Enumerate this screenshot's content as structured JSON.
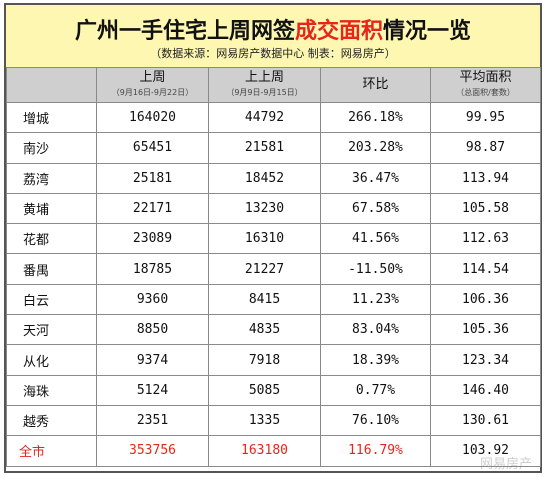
{
  "title": {
    "part1": "广州一手住宅上周网签",
    "highlight": "成交面积",
    "part2": "情况一览"
  },
  "subtitle": "（数据来源：网易房产数据中心 制表：网易房产）",
  "columns": [
    {
      "label": "",
      "sub": ""
    },
    {
      "label": "上周",
      "sub": "（9月16日-9月22日）"
    },
    {
      "label": "上上周",
      "sub": "（9月9日-9月15日）"
    },
    {
      "label": "环比",
      "sub": ""
    },
    {
      "label": "平均面积",
      "sub": "（总面积/套数）"
    }
  ],
  "rows": [
    {
      "district": "增城",
      "last_week": "164020",
      "prev_week": "44792",
      "change": "266.18%",
      "avg_area": "99.95"
    },
    {
      "district": "南沙",
      "last_week": "65451",
      "prev_week": "21581",
      "change": "203.28%",
      "avg_area": "98.87"
    },
    {
      "district": "荔湾",
      "last_week": "25181",
      "prev_week": "18452",
      "change": "36.47%",
      "avg_area": "113.94"
    },
    {
      "district": "黄埔",
      "last_week": "22171",
      "prev_week": "13230",
      "change": "67.58%",
      "avg_area": "105.58"
    },
    {
      "district": "花都",
      "last_week": "23089",
      "prev_week": "16310",
      "change": "41.56%",
      "avg_area": "112.63"
    },
    {
      "district": "番禺",
      "last_week": "18785",
      "prev_week": "21227",
      "change": "-11.50%",
      "avg_area": "114.54"
    },
    {
      "district": "白云",
      "last_week": "9360",
      "prev_week": "8415",
      "change": "11.23%",
      "avg_area": "106.36"
    },
    {
      "district": "天河",
      "last_week": "8850",
      "prev_week": "4835",
      "change": "83.04%",
      "avg_area": "105.36"
    },
    {
      "district": "从化",
      "last_week": "9374",
      "prev_week": "7918",
      "change": "18.39%",
      "avg_area": "123.34"
    },
    {
      "district": "海珠",
      "last_week": "5124",
      "prev_week": "5085",
      "change": "0.77%",
      "avg_area": "146.40"
    },
    {
      "district": "越秀",
      "last_week": "2351",
      "prev_week": "1335",
      "change": "76.10%",
      "avg_area": "130.61"
    }
  ],
  "total": {
    "district": "全市",
    "last_week": "353756",
    "prev_week": "163180",
    "change": "116.79%",
    "avg_area": "103.92"
  },
  "watermark": "网易房产",
  "colors": {
    "title_bg": "#fdf7b2",
    "header_bg": "#cfcfcf",
    "highlight": "#e8251b",
    "border": "#8a8a8a"
  }
}
